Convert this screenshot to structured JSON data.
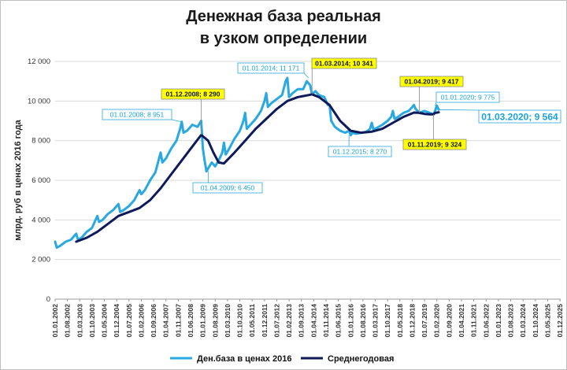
{
  "title": {
    "line1": "Денежная база реальная",
    "line2": "в узком определении"
  },
  "chart_data": {
    "type": "line",
    "ylabel": "млрд. руб  в ценах 2016 года",
    "xlabel": "",
    "ylim": [
      0,
      12000
    ],
    "yticks": [
      "0",
      "2 000",
      "4 000",
      "6 000",
      "8 000",
      "10 000",
      "12 000"
    ],
    "ytick_values": [
      0,
      2000,
      4000,
      6000,
      8000,
      10000,
      12000
    ],
    "x_tick_labels": [
      "01.01.2002",
      "01.08.2002",
      "01.03.2003",
      "01.10.2003",
      "01.05.2004",
      "01.12.2004",
      "01.07.2005",
      "01.02.2006",
      "01.09.2006",
      "01.04.2007",
      "01.11.2007",
      "01.06.2008",
      "01.01.2009",
      "01.08.2009",
      "01.03.2010",
      "01.10.2010",
      "01.05.2011",
      "01.12.2011",
      "01.07.2012",
      "01.02.2013",
      "01.09.2013",
      "01.04.2014",
      "01.11.2014",
      "01.06.2015",
      "01.01.2016",
      "01.08.2016",
      "01.03.2017",
      "01.10.2017",
      "01.05.2018",
      "01.12.2018",
      "01.07.2019",
      "01.02.2020",
      "01.09.2020",
      "01.04.2021",
      "01.11.2021",
      "01.06.2022",
      "01.01.2023",
      "01.08.2023",
      "01.03.2024",
      "01.10.2024",
      "01.05.2025",
      "01.12.2025"
    ],
    "x_tick_decimal_years": [
      2002.0,
      2002.583,
      2003.167,
      2003.75,
      2004.333,
      2004.917,
      2005.5,
      2006.083,
      2006.667,
      2007.25,
      2007.833,
      2008.417,
      2009.0,
      2009.583,
      2010.167,
      2010.75,
      2011.333,
      2011.917,
      2012.5,
      2013.083,
      2013.667,
      2014.25,
      2014.833,
      2015.417,
      2016.0,
      2016.583,
      2017.167,
      2017.75,
      2018.333,
      2018.917,
      2019.5,
      2020.083,
      2020.667,
      2021.25,
      2021.833,
      2022.417,
      2023.0,
      2023.583,
      2024.167,
      2024.75,
      2025.333,
      2025.917
    ],
    "x_range": [
      2002.0,
      2025.95
    ],
    "legend_position": "bottom",
    "series": [
      {
        "name": "Ден.база в ценах 2016",
        "color": "#29a9e0",
        "x": [
          2002.0,
          2002.08,
          2002.25,
          2002.5,
          2002.75,
          2003.0,
          2003.08,
          2003.25,
          2003.5,
          2003.75,
          2004.0,
          2004.08,
          2004.25,
          2004.5,
          2004.75,
          2005.0,
          2005.08,
          2005.25,
          2005.5,
          2005.75,
          2006.0,
          2006.08,
          2006.25,
          2006.5,
          2006.75,
          2007.0,
          2007.08,
          2007.25,
          2007.5,
          2007.75,
          2007.92,
          2008.0,
          2008.08,
          2008.25,
          2008.5,
          2008.75,
          2008.92,
          2009.0,
          2009.08,
          2009.17,
          2009.25,
          2009.42,
          2009.58,
          2009.75,
          2009.92,
          2010.0,
          2010.08,
          2010.25,
          2010.5,
          2010.75,
          2010.92,
          2011.0,
          2011.08,
          2011.25,
          2011.5,
          2011.75,
          2011.92,
          2012.0,
          2012.08,
          2012.25,
          2012.5,
          2012.75,
          2012.92,
          2013.0,
          2013.08,
          2013.25,
          2013.5,
          2013.75,
          2013.92,
          2014.0,
          2014.08,
          2014.17,
          2014.33,
          2014.5,
          2014.75,
          2014.92,
          2015.0,
          2015.08,
          2015.25,
          2015.5,
          2015.75,
          2015.92,
          2016.0,
          2016.08,
          2016.25,
          2016.5,
          2016.75,
          2016.92,
          2017.0,
          2017.08,
          2017.25,
          2017.5,
          2017.75,
          2017.92,
          2018.0,
          2018.08,
          2018.25,
          2018.5,
          2018.75,
          2018.92,
          2019.0,
          2019.08,
          2019.25,
          2019.5,
          2019.75,
          2019.92,
          2020.0,
          2020.08,
          2020.17
        ],
        "y": [
          2900,
          2600,
          2700,
          2900,
          3000,
          3300,
          3000,
          3100,
          3400,
          3600,
          4200,
          3900,
          4000,
          4300,
          4500,
          4800,
          4400,
          4500,
          4700,
          5000,
          5500,
          5300,
          5500,
          6000,
          6400,
          7400,
          6900,
          7100,
          7600,
          8000,
          8600,
          8951,
          8400,
          8500,
          8800,
          8700,
          9000,
          7600,
          7000,
          6450,
          6600,
          6900,
          6700,
          7000,
          7400,
          7900,
          7300,
          7600,
          8100,
          8500,
          9000,
          9400,
          8600,
          8800,
          9100,
          9500,
          10000,
          10400,
          9700,
          9900,
          10100,
          10300,
          11000,
          11171,
          10200,
          10400,
          10600,
          10600,
          11000,
          10900,
          10800,
          10341,
          10500,
          10300,
          10200,
          9800,
          9800,
          9000,
          8700,
          8500,
          8400,
          8500,
          8270,
          8400,
          8350,
          8400,
          8450,
          8600,
          8900,
          8550,
          8650,
          8800,
          9000,
          9200,
          9500,
          9100,
          9200,
          9400,
          9500,
          9700,
          9800,
          9600,
          9417,
          9500,
          9400,
          9324,
          9500,
          9775,
          9564
        ]
      },
      {
        "name": "Среднегодовая",
        "color": "#0f1a5a",
        "x": [
          2003.0,
          2003.5,
          2004.0,
          2004.5,
          2005.0,
          2005.5,
          2006.0,
          2006.5,
          2007.0,
          2007.5,
          2008.0,
          2008.5,
          2008.92,
          2009.25,
          2009.5,
          2009.75,
          2010.0,
          2010.5,
          2011.0,
          2011.5,
          2012.0,
          2012.5,
          2013.0,
          2013.5,
          2014.0,
          2014.17,
          2014.5,
          2015.0,
          2015.5,
          2016.0,
          2016.5,
          2017.0,
          2017.5,
          2018.0,
          2018.5,
          2019.0,
          2019.25,
          2019.5,
          2019.75,
          2019.92,
          2020.0,
          2020.17
        ],
        "y": [
          2900,
          3100,
          3400,
          3800,
          4200,
          4400,
          4600,
          5000,
          5600,
          6300,
          7000,
          7700,
          8290,
          8000,
          7400,
          6900,
          6850,
          7400,
          8000,
          8600,
          9100,
          9600,
          10000,
          10200,
          10300,
          10341,
          10200,
          9800,
          9000,
          8500,
          8400,
          8450,
          8600,
          8900,
          9200,
          9417,
          9400,
          9350,
          9330,
          9324,
          9400,
          9430
        ]
      }
    ],
    "annotations": [
      {
        "text": "01.12.2008;  8 290",
        "style": "yellow"
      },
      {
        "text": "01.01.2008; 8 951",
        "style": "blue"
      },
      {
        "text": "01.04.2009; 6 450",
        "style": "blue"
      },
      {
        "text": "01.01.2014; 11 171",
        "style": "blue"
      },
      {
        "text": "01.03.2014;  10 341",
        "style": "yellow"
      },
      {
        "text": "01.12.2015; 8 270",
        "style": "blue"
      },
      {
        "text": "01.04.2019;  9 417",
        "style": "yellow"
      },
      {
        "text": "01.01.2020; 9 775",
        "style": "blue"
      },
      {
        "text": "01.03.2020; 9 564",
        "style": "blue-large"
      },
      {
        "text": "01.11.2019;  9 324",
        "style": "yellow"
      }
    ]
  }
}
